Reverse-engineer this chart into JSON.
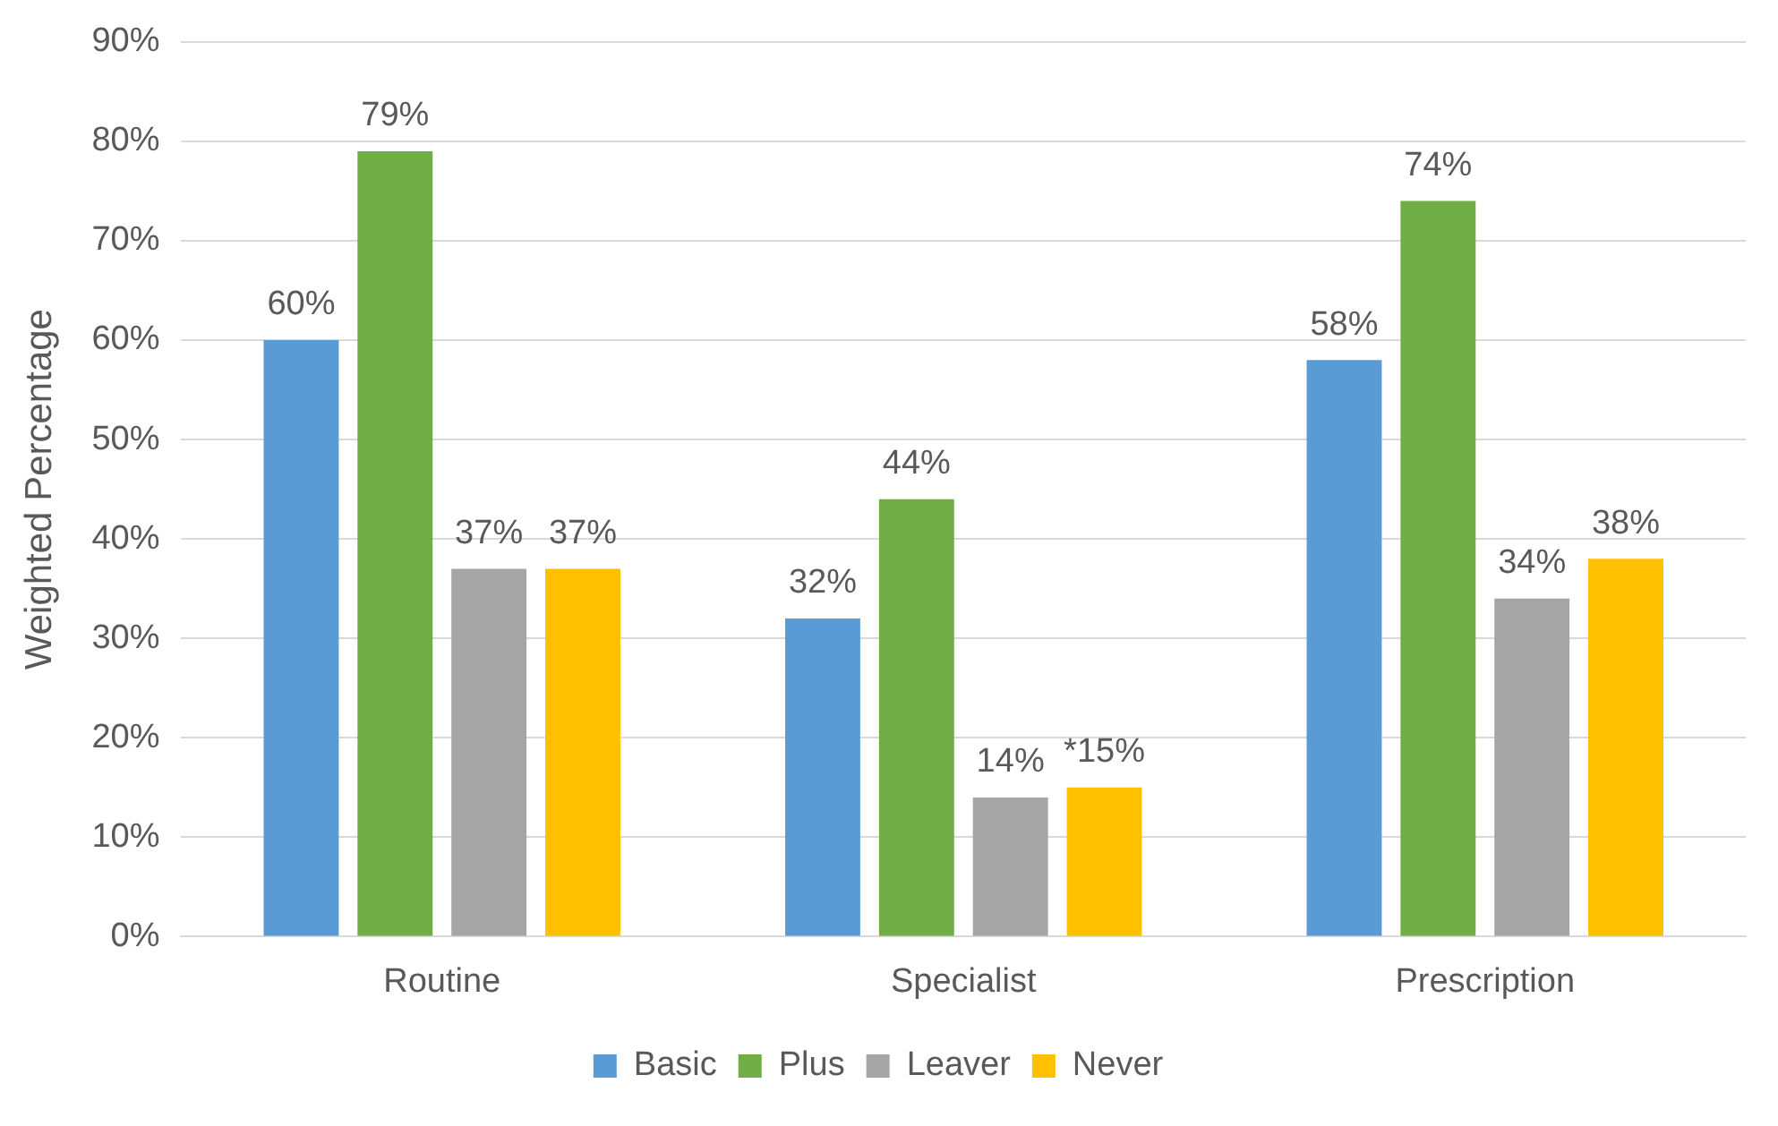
{
  "chart_data": {
    "type": "bar",
    "ylabel": "Weighted Percentage",
    "categories": [
      "Routine",
      "Specialist",
      "Prescription"
    ],
    "series": [
      {
        "name": "Basic",
        "color": "#5b9bd5",
        "values": [
          60,
          32,
          58
        ],
        "value_labels": [
          "60%",
          "32%",
          "58%"
        ]
      },
      {
        "name": "Plus",
        "color": "#70ad47",
        "values": [
          79,
          44,
          74
        ],
        "value_labels": [
          "79%",
          "44%",
          "74%"
        ]
      },
      {
        "name": "Leaver",
        "color": "#a5a5a5",
        "values": [
          37,
          14,
          34
        ],
        "value_labels": [
          "37%",
          "14%",
          "34%"
        ]
      },
      {
        "name": "Never",
        "color": "#ffc000",
        "values": [
          37,
          15,
          38
        ],
        "value_labels": [
          "37%",
          "*15%",
          "38%"
        ]
      }
    ],
    "ylim": [
      0,
      90
    ],
    "yticks": [
      {
        "value": 0,
        "label": "0%"
      },
      {
        "value": 10,
        "label": "10%"
      },
      {
        "value": 20,
        "label": "20%"
      },
      {
        "value": 30,
        "label": "30%"
      },
      {
        "value": 40,
        "label": "40%"
      },
      {
        "value": 50,
        "label": "50%"
      },
      {
        "value": 60,
        "label": "60%"
      },
      {
        "value": 70,
        "label": "70%"
      },
      {
        "value": 80,
        "label": "80%"
      },
      {
        "value": 90,
        "label": "90%"
      }
    ],
    "grid": "y",
    "legend": "bottom"
  }
}
